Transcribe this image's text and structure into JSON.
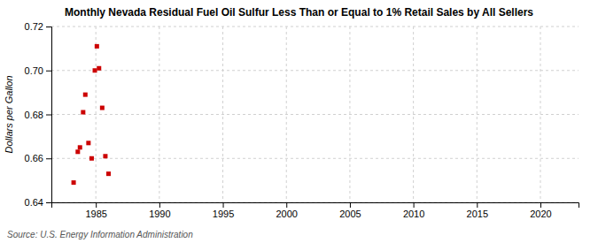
{
  "chart_data": {
    "type": "scatter",
    "title": "Monthly Nevada Residual Fuel Oil Sulfur Less Than or Equal to 1% Retail Sales by All Sellers",
    "ylabel": "Dollars per Gallon",
    "annotations": [
      "Source: U.S. Energy Information Administration"
    ],
    "x": [
      1983.25,
      1983.58,
      1983.75,
      1984.0,
      1984.17,
      1984.42,
      1984.67,
      1984.92,
      1985.08,
      1985.25,
      1985.5,
      1985.75,
      1986.0
    ],
    "values": [
      0.649,
      0.663,
      0.665,
      0.681,
      0.689,
      0.667,
      0.66,
      0.7,
      0.711,
      0.701,
      0.683,
      0.661,
      0.653
    ],
    "color": "#cc0000",
    "marker": "square",
    "xlim": [
      1981.5,
      2023
    ],
    "ylim": [
      0.64,
      0.72
    ],
    "xticks": [
      1985,
      1990,
      1995,
      2000,
      2005,
      2010,
      2015,
      2020
    ],
    "yticks": [
      0.64,
      0.66,
      0.68,
      {
        "value": 0.7,
        "label": "0.70"
      },
      0.72
    ],
    "grid": true
  }
}
